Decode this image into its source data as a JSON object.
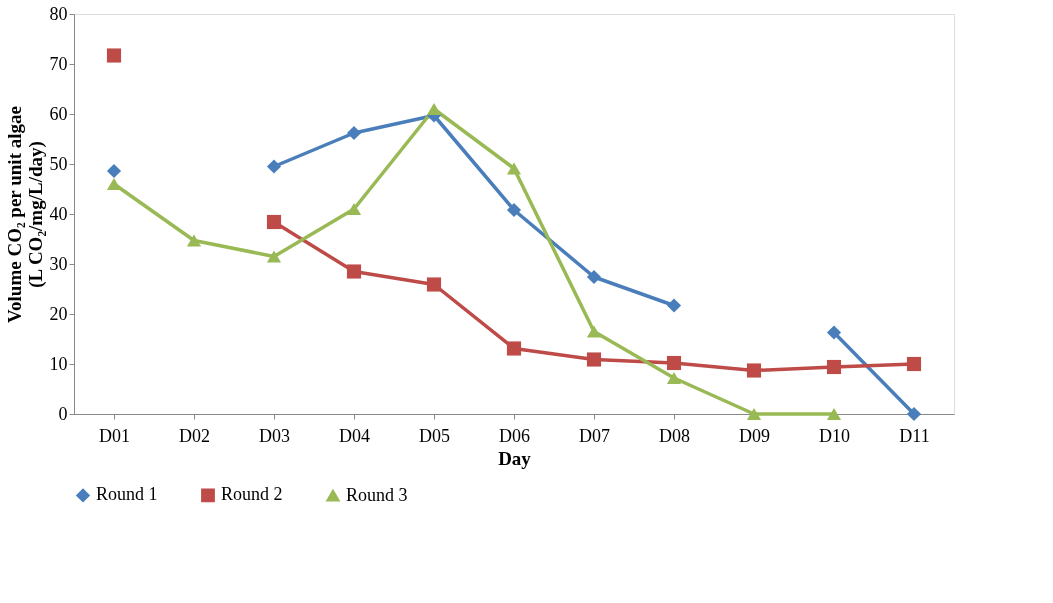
{
  "chart_data": {
    "type": "line",
    "xlabel": "Day",
    "ylabel": "Volume CO₂ per unit algae\n(L CO₂/mg/L/day)",
    "categories": [
      "D01",
      "D02",
      "D03",
      "D04",
      "D05",
      "D06",
      "D07",
      "D08",
      "D09",
      "D10",
      "D11"
    ],
    "series": [
      {
        "name": "Round 1",
        "color": "#4a7ebb",
        "marker": "diamond",
        "values": [
          48.6,
          null,
          49.5,
          56.2,
          59.7,
          40.8,
          27.4,
          21.7,
          null,
          16.3,
          0
        ]
      },
      {
        "name": "Round 2",
        "color": "#be4b48",
        "marker": "square",
        "values": [
          71.7,
          null,
          38.4,
          28.5,
          25.9,
          13.1,
          10.9,
          10.2,
          8.7,
          9.4,
          10
        ]
      },
      {
        "name": "Round 3",
        "color": "#98b954",
        "marker": "triangle",
        "values": [
          46,
          34.7,
          31.5,
          41,
          61,
          49.1,
          16.5,
          7.2,
          0,
          0,
          null
        ]
      }
    ],
    "ylim": [
      0,
      80
    ],
    "yticks": [
      0,
      10,
      20,
      30,
      40,
      50,
      60,
      70,
      80
    ],
    "grid": false,
    "legend": "bottom",
    "line_style": "solid"
  }
}
